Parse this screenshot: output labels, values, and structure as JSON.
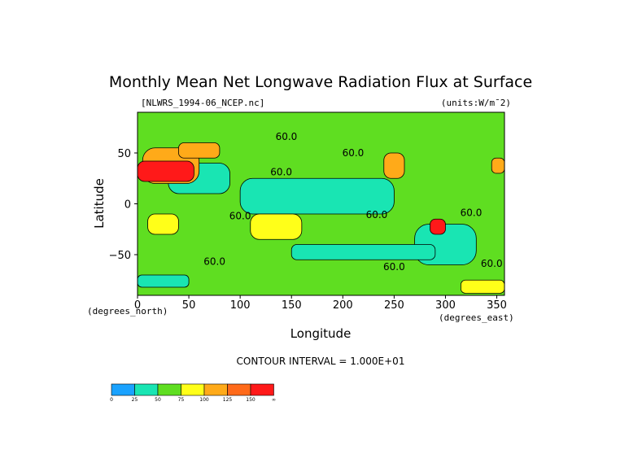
{
  "chart_data": {
    "type": "heatmap",
    "title": "Monthly Mean Net Longwave Radiation Flux at Surface",
    "dataset": "[NLWRS_1994-06_NCEP.nc]",
    "units": "(units:W/m^2)",
    "units_display": "(units:W/m¯2)",
    "xlabel": "Longitude",
    "ylabel": "Latitude",
    "x_unit_label": "(degrees_east)",
    "y_unit_label": "(degrees_north)",
    "xlim": [
      0,
      357.5
    ],
    "ylim": [
      -90,
      90
    ],
    "x_ticks": [
      0,
      50,
      100,
      150,
      200,
      250,
      300,
      350
    ],
    "y_ticks": [
      50,
      0,
      -50
    ],
    "y_tick_labels": [
      "50",
      "0",
      "−50"
    ],
    "contour_interval_text": "CONTOUR INTERVAL = 1.000E+01",
    "colorbar": {
      "levels": [
        "0",
        "25",
        "50",
        "75",
        "100",
        "125",
        "150",
        "∞"
      ],
      "colors": [
        "#1aa2ff",
        "#19e5b3",
        "#5fde21",
        "#ffff19",
        "#ffaa19",
        "#ff6a1a",
        "#ff1919"
      ]
    },
    "contour_labels": [
      {
        "text": "60.0",
        "lon": 145,
        "lat": 63
      },
      {
        "text": "60.0",
        "lon": 210,
        "lat": 47
      },
      {
        "text": "60.0",
        "lon": 140,
        "lat": 28
      },
      {
        "text": "60.0",
        "lon": 100,
        "lat": -15
      },
      {
        "text": "60.0",
        "lon": 233,
        "lat": -14
      },
      {
        "text": "60.0",
        "lon": 325,
        "lat": -12
      },
      {
        "text": "60.0",
        "lon": 75,
        "lat": -60
      },
      {
        "text": "60.0",
        "lon": 250,
        "lat": -65
      },
      {
        "text": "60.0",
        "lon": 345,
        "lat": -62
      }
    ],
    "regions": [
      {
        "lon": [
          0,
          357.5
        ],
        "lat": [
          -90,
          90
        ],
        "value": 60
      },
      {
        "lon": [
          100,
          250
        ],
        "lat": [
          -10,
          25
        ],
        "value": 45
      },
      {
        "lon": [
          30,
          90
        ],
        "lat": [
          10,
          40
        ],
        "value": 40
      },
      {
        "lon": [
          270,
          330
        ],
        "lat": [
          -60,
          -20
        ],
        "value": 40
      },
      {
        "lon": [
          150,
          290
        ],
        "lat": [
          -55,
          -40
        ],
        "value": 40
      },
      {
        "lon": [
          0,
          50
        ],
        "lat": [
          -82,
          -70
        ],
        "value": 40
      },
      {
        "lon": [
          5,
          60
        ],
        "lat": [
          20,
          55
        ],
        "value": 115
      },
      {
        "lon": [
          0,
          55
        ],
        "lat": [
          22,
          42
        ],
        "value": 155
      },
      {
        "lon": [
          40,
          80
        ],
        "lat": [
          45,
          60
        ],
        "value": 120
      },
      {
        "lon": [
          240,
          260
        ],
        "lat": [
          25,
          50
        ],
        "value": 120
      },
      {
        "lon": [
          10,
          40
        ],
        "lat": [
          -30,
          -10
        ],
        "value": 90
      },
      {
        "lon": [
          110,
          160
        ],
        "lat": [
          -35,
          -10
        ],
        "value": 95
      },
      {
        "lon": [
          285,
          300
        ],
        "lat": [
          -30,
          -15
        ],
        "value": 160
      },
      {
        "lon": [
          345,
          357.5
        ],
        "lat": [
          30,
          45
        ],
        "value": 120
      },
      {
        "lon": [
          315,
          357.5
        ],
        "lat": [
          -88,
          -75
        ],
        "value": 90
      }
    ]
  }
}
